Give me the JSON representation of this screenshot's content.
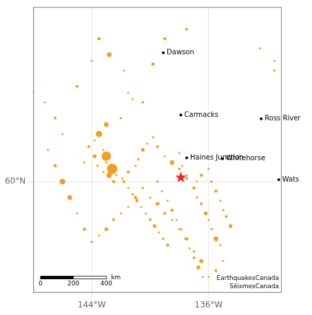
{
  "chart_data": {
    "type": "scatter",
    "xlim": [
      -148,
      -131
    ],
    "ylim": [
      56.5,
      65.5
    ],
    "xticks": [
      {
        "value": -144,
        "label": "144°W"
      },
      {
        "value": -136,
        "label": "136°W"
      }
    ],
    "yticks": [
      {
        "value": 60,
        "label": "60°N"
      }
    ],
    "grid": true,
    "series": [
      {
        "type": "scatter",
        "color": "#f0a020",
        "marker": "circle",
        "x": [
          -139.8,
          -141.5,
          -141.2,
          -142.0,
          -143.0,
          -143.5,
          -143.8,
          -144.2,
          -143.2,
          -143.0,
          -143.8,
          -144.5,
          -143.6,
          -143.2,
          -142.8,
          -142.5,
          -141.9,
          -141.5,
          -141.0,
          -140.8,
          -140.5,
          -140.2,
          -139.8,
          -139.5,
          -139.0,
          -138.5,
          -138.0,
          -137.5,
          -137.0,
          -136.8,
          -136.5,
          -136.2,
          -136.0,
          -135.8,
          -135.5,
          -135.2,
          -135.0,
          -135.5,
          -136.0,
          -136.5,
          -137.0,
          -137.5,
          -138.0,
          -138.5,
          -139.0,
          -139.5,
          -140.0,
          -140.5,
          -141.0,
          -141.5,
          -142.0,
          -142.5,
          -143.0,
          -143.5,
          -144.0,
          -144.5,
          -145.0,
          -145.5,
          -146.0,
          -146.5,
          -147.0,
          -139.0,
          -137.5,
          -132.5,
          -131.5,
          -131.5,
          -138.0,
          -137.8,
          -137.5,
          -136.8,
          -136.5,
          -136.0,
          -135.8,
          -135.5,
          -135.2,
          -135.0,
          -134.8,
          -134.5,
          -146.0,
          -146.5,
          -147.2,
          -148.0,
          -140.5,
          -141.8,
          -142.8,
          -143.5,
          -144.0,
          -145.0,
          -139.5,
          -139.2,
          -138.8,
          -138.5,
          -138.2,
          -137.9,
          -137.6,
          -137.3,
          -137.0,
          -136.7,
          -136.4,
          -143.0,
          -142.6,
          -142.3,
          -141.8,
          -141.5,
          -141.2,
          -140.9,
          -140.6,
          -140.3,
          -140.0,
          -139.7,
          -139.4,
          -139.1,
          -138.8
        ],
        "y": [
          63.7,
          62.8,
          62.6,
          62.0,
          61.8,
          61.5,
          61.3,
          61.1,
          61.0,
          60.8,
          60.8,
          60.6,
          60.5,
          60.3,
          60.2,
          60.0,
          60.1,
          60.3,
          60.5,
          60.7,
          61.0,
          61.2,
          61.4,
          61.1,
          60.8,
          60.6,
          60.4,
          60.2,
          59.8,
          59.5,
          59.3,
          59.0,
          58.8,
          58.5,
          58.2,
          58.0,
          57.5,
          57.2,
          57.0,
          57.5,
          57.8,
          58.2,
          58.5,
          58.8,
          59.0,
          59.3,
          59.5,
          59.8,
          59.5,
          59.2,
          59.0,
          58.8,
          58.5,
          58.3,
          58.1,
          58.5,
          59.0,
          59.5,
          60.0,
          60.5,
          61.0,
          64.5,
          64.8,
          64.2,
          63.8,
          63.5,
          60.9,
          60.5,
          60.1,
          60.0,
          60.2,
          60.4,
          60.0,
          59.7,
          59.4,
          59.1,
          58.9,
          58.6,
          61.5,
          62.0,
          62.5,
          62.8,
          62.5,
          63.5,
          64.0,
          64.5,
          63.8,
          63.0,
          60.0,
          59.7,
          59.4,
          59.1,
          58.8,
          58.5,
          58.2,
          57.9,
          57.6,
          57.3,
          57.0,
          60.6,
          60.4,
          60.2,
          60.0,
          59.8,
          59.6,
          59.4,
          59.2,
          59.0,
          58.8,
          58.6,
          58.4,
          58.2,
          58.0
        ],
        "magnitude": [
          5.5,
          5.2,
          5.0,
          5.3,
          5.8,
          6.2,
          5.0,
          5.4,
          5.1,
          6.8,
          5.6,
          5.2,
          5.3,
          5.0,
          6.0,
          5.5,
          5.2,
          5.4,
          5.1,
          5.3,
          5.6,
          5.0,
          5.2,
          5.4,
          5.1,
          5.8,
          5.3,
          5.0,
          5.5,
          5.2,
          5.4,
          5.6,
          5.1,
          5.3,
          5.8,
          5.0,
          5.2,
          5.4,
          5.1,
          5.7,
          5.3,
          5.5,
          5.0,
          5.2,
          5.4,
          5.6,
          5.1,
          5.3,
          5.5,
          5.0,
          5.2,
          5.4,
          5.6,
          5.1,
          5.3,
          5.5,
          5.0,
          5.8,
          6.0,
          5.5,
          5.2,
          5.5,
          5.4,
          5.2,
          5.0,
          5.3,
          5.0,
          5.2,
          5.4,
          5.0,
          5.5,
          5.1,
          5.3,
          5.5,
          5.0,
          5.2,
          5.4,
          5.6,
          5.2,
          5.4,
          5.0,
          5.2,
          5.3,
          5.1,
          5.8,
          5.5,
          5.0,
          5.4,
          5.3,
          5.0,
          5.2,
          5.5,
          5.1,
          5.3,
          5.0,
          5.2,
          5.4,
          5.6,
          5.1,
          5.0,
          7.0,
          5.2,
          5.4,
          5.1,
          5.3,
          5.5,
          5.0,
          5.2,
          5.4,
          5.6,
          5.1,
          5.3,
          5.5
        ]
      },
      {
        "type": "scatter",
        "color": "#ee2222",
        "marker": "star",
        "x": [
          -137.9
        ],
        "y": [
          60.15
        ]
      },
      {
        "type": "scatter",
        "color": "#000000",
        "marker": "square",
        "x": [
          -139.1,
          -137.9,
          -132.4,
          -137.5,
          -135.05,
          -131.2
        ],
        "y": [
          64.06,
          62.1,
          61.98,
          60.75,
          60.72,
          60.06
        ],
        "point_labels": [
          "Dawson",
          "Carmacks",
          "Ross River",
          "Haines Junction",
          "Whitehorse",
          "Wats"
        ]
      }
    ],
    "scale_bar": {
      "lon": [
        -147.5,
        -143.0
      ],
      "labels": [
        0,
        200,
        400
      ],
      "unit": "km"
    },
    "annotations": [
      {
        "text": "EarthquakesCanada\nSéismesCanada"
      }
    ]
  }
}
